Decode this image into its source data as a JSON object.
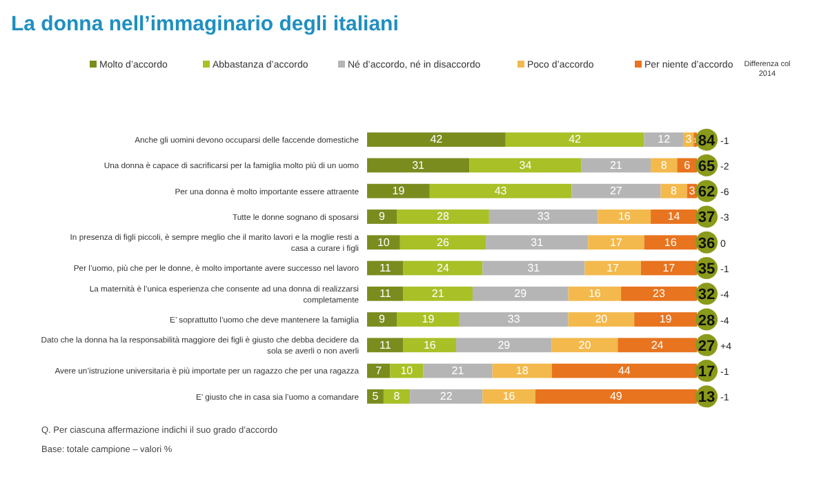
{
  "chart_data": {
    "type": "bar",
    "orientation": "horizontal",
    "stacked": true,
    "title": "La donna nell’immaginario degli italiani",
    "categories": [
      "Anche gli uomini devono occuparsi delle faccende domestiche",
      "Una donna è capace di sacrificarsi per la famiglia molto più di un uomo",
      "Per una donna è molto importante essere attraente",
      "Tutte le donne sognano di sposarsi",
      "In presenza di figli piccoli, è sempre meglio che il marito lavori e la moglie resti a casa a curare i figli",
      "Per l’uomo, più che per le donne, è molto importante avere successo nel lavoro",
      "La maternità è l’unica esperienza che consente ad una donna di realizzarsi completamente",
      "E’ soprattutto l’uomo che deve mantenere la famiglia",
      "Dato che la donna ha la responsabilità maggiore dei figli è giusto che debba decidere da sola se averli o non averli",
      "Avere un’istruzione universitaria è più importate per un ragazzo che per una ragazza",
      "E’ giusto che in casa sia l’uomo a comandare"
    ],
    "series": [
      {
        "name": "Molto d’accordo",
        "color": "#7b8c1f",
        "values": [
          42,
          31,
          19,
          9,
          10,
          11,
          11,
          9,
          11,
          7,
          5
        ]
      },
      {
        "name": "Abbastanza d’accordo",
        "color": "#a9c027",
        "values": [
          42,
          34,
          43,
          28,
          26,
          24,
          21,
          19,
          16,
          10,
          8
        ]
      },
      {
        "name": "Né d’accordo, né in disaccordo",
        "color": "#b5b5b5",
        "values": [
          12,
          21,
          27,
          33,
          31,
          31,
          29,
          33,
          29,
          21,
          22
        ]
      },
      {
        "name": "Poco d’accordo",
        "color": "#f3b94c",
        "values": [
          3,
          8,
          8,
          16,
          17,
          17,
          16,
          20,
          20,
          18,
          16
        ]
      },
      {
        "name": "Per niente d’accordo",
        "color": "#e8741f",
        "values": [
          1,
          6,
          3,
          14,
          16,
          17,
          23,
          19,
          24,
          44,
          49
        ]
      }
    ],
    "data_labels": true,
    "legend": "top",
    "annotations": [
      "Differenza col 2014",
      "84",
      "65",
      "62",
      "37",
      "36",
      "35",
      "32",
      "28",
      "27",
      "17",
      "13",
      "-1",
      "-2",
      "-6",
      "-3",
      "0",
      "-1",
      "-4",
      "-4",
      "+4",
      "-1",
      "-1",
      "Q. Per ciascuna affermazione indichi il suo grado d’accordo",
      "Base: totale campione – valori %"
    ]
  }
}
